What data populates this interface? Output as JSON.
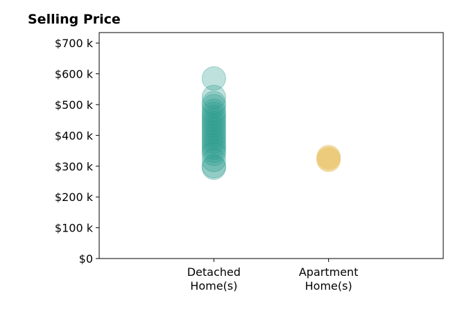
{
  "chart_data": {
    "type": "strip",
    "title": "Selling Price",
    "categories": [
      "Detached Home(s)",
      "Apartment Home(s)"
    ],
    "values": [
      [
        585,
        525,
        505,
        495,
        480,
        470,
        460,
        450,
        440,
        430,
        420,
        410,
        400,
        390,
        380,
        370,
        360,
        350,
        340,
        320,
        300,
        295
      ],
      [
        330,
        325,
        320
      ]
    ],
    "colors": [
      "#2a9d8f",
      "#e9c46a"
    ],
    "ylim": [
      0,
      734
    ],
    "yticks": [
      {
        "value": 0,
        "label": "$0"
      },
      {
        "value": 100,
        "label": "$100 k"
      },
      {
        "value": 200,
        "label": "$200 k"
      },
      {
        "value": 300,
        "label": "$300 k"
      },
      {
        "value": 400,
        "label": "$400 k"
      },
      {
        "value": 500,
        "label": "$500 k"
      },
      {
        "value": 600,
        "label": "$600 k"
      },
      {
        "value": 700,
        "label": "$700 k"
      }
    ],
    "grid": false
  }
}
